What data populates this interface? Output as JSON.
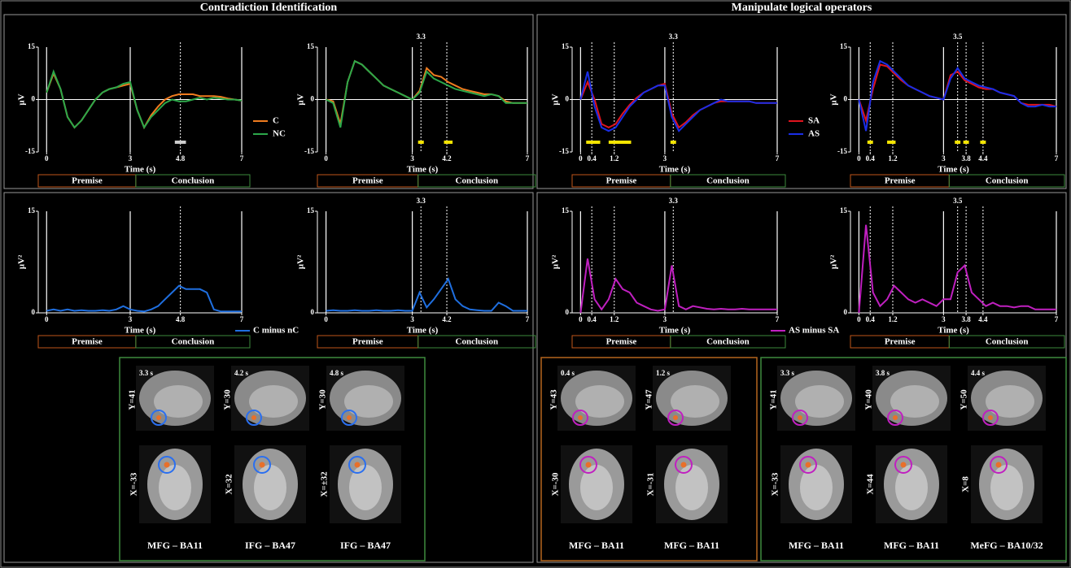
{
  "sections": [
    "Contradiction Identification",
    "Manipulate logical operators"
  ],
  "chart_data": [
    {
      "type": "line",
      "ylabel": "µV",
      "xlabel": "Time (s)",
      "xlim": [
        -0.3,
        7
      ],
      "ylim": [
        -15,
        15
      ],
      "yticks": [
        -15,
        0,
        15
      ],
      "xticks": [
        0,
        3,
        4.8,
        7
      ],
      "x": [
        0,
        0.25,
        0.5,
        0.75,
        1,
        1.25,
        1.5,
        1.75,
        2,
        2.25,
        2.5,
        2.75,
        3,
        3.25,
        3.5,
        3.75,
        4,
        4.25,
        4.5,
        4.75,
        5,
        5.25,
        5.5,
        5.75,
        6,
        6.25,
        6.5,
        6.75,
        7
      ],
      "series": [
        {
          "name": "C",
          "color": "#f07c1f",
          "values": [
            2,
            7.5,
            3,
            -5,
            -8,
            -6,
            -3,
            0,
            2,
            3,
            3.5,
            4,
            4.5,
            -3,
            -8,
            -4.5,
            -2,
            0,
            1,
            1.5,
            1.5,
            1.5,
            1,
            1,
            1,
            0.8,
            0.3,
            0,
            -0.3
          ]
        },
        {
          "name": "NC",
          "color": "#2ca84a",
          "values": [
            2,
            8,
            3,
            -5,
            -8,
            -6,
            -3,
            0,
            2,
            3,
            3.5,
            4.5,
            5,
            -3,
            -8,
            -5,
            -3,
            -1,
            0,
            -0.5,
            -0.5,
            0,
            0.5,
            0,
            0.5,
            0.3,
            0,
            0,
            -0.3
          ]
        }
      ],
      "legend": "right",
      "event_lines": [
        0,
        3,
        7
      ],
      "dashed_lines": [
        4.8
      ],
      "top_labels": [],
      "interval_color": "#cccccc",
      "significant_intervals": [
        {
          "start": 4.6,
          "end": 5.0
        }
      ],
      "phases": [
        "Premise",
        "Conclusion"
      ]
    },
    {
      "type": "line",
      "ylabel": "µV",
      "xlabel": "Time (s)",
      "xlim": [
        -0.3,
        7
      ],
      "ylim": [
        -15,
        15
      ],
      "yticks": [
        -15,
        0,
        15
      ],
      "xticks": [
        0,
        3,
        4.2,
        7
      ],
      "x": [
        0,
        0.25,
        0.5,
        0.75,
        1,
        1.25,
        1.5,
        1.75,
        2,
        2.25,
        2.5,
        2.75,
        3,
        3.25,
        3.5,
        3.75,
        4,
        4.25,
        4.5,
        4.75,
        5,
        5.25,
        5.5,
        5.75,
        6,
        6.25,
        6.5,
        6.75,
        7
      ],
      "series": [
        {
          "color": "#f07c1f",
          "values": [
            0,
            -0.5,
            -7,
            5,
            11,
            10,
            8,
            6,
            4,
            3,
            2,
            1,
            0,
            2.5,
            9,
            7,
            6.5,
            5,
            4,
            3,
            2.5,
            2,
            1.5,
            1.5,
            1,
            -0.5,
            -1,
            -1,
            -1
          ]
        },
        {
          "color": "#2ca84a",
          "values": [
            0,
            -1,
            -8,
            5,
            11,
            10,
            8,
            6,
            4,
            3,
            2,
            1,
            0,
            2,
            8,
            6,
            5,
            4,
            3,
            2.5,
            2,
            1.5,
            1,
            1.5,
            1,
            -1,
            -1,
            -1,
            -1
          ]
        }
      ],
      "event_lines": [
        0,
        3,
        7
      ],
      "dashed_lines": [
        3.3,
        4.2
      ],
      "top_labels": [
        3.3
      ],
      "interval_color": "#f5e400",
      "significant_intervals": [
        {
          "start": 3.2,
          "end": 3.4
        },
        {
          "start": 4.1,
          "end": 4.4
        }
      ],
      "phases": [
        "Premise",
        "Conclusion"
      ]
    },
    {
      "type": "line",
      "ylabel": "µV",
      "xlabel": "Time (s)",
      "xlim": [
        -0.3,
        7
      ],
      "ylim": [
        -15,
        15
      ],
      "yticks": [
        -15,
        0,
        15
      ],
      "xticks": [
        0,
        0.4,
        1.2,
        3,
        7
      ],
      "x": [
        0,
        0.25,
        0.5,
        0.75,
        1,
        1.25,
        1.5,
        1.75,
        2,
        2.25,
        2.5,
        2.75,
        3,
        3.25,
        3.5,
        3.75,
        4,
        4.25,
        4.5,
        4.75,
        5,
        5.25,
        5.5,
        5.75,
        6,
        6.25,
        6.5,
        6.75,
        7
      ],
      "series": [
        {
          "name": "SA",
          "color": "#e0141e",
          "values": [
            0,
            5,
            0,
            -7,
            -8,
            -7,
            -4,
            -1.5,
            0.5,
            2,
            3,
            4,
            4.5,
            -4,
            -8,
            -6.5,
            -4.5,
            -3,
            -2,
            -1,
            -0.5,
            -0.5,
            -0.5,
            -0.5,
            -0.5,
            -1,
            -1,
            -1,
            -1
          ]
        },
        {
          "name": "AS",
          "color": "#1a2ee8",
          "values": [
            0,
            8,
            -2,
            -8,
            -9,
            -8,
            -5,
            -2,
            0,
            2,
            3,
            4,
            4,
            -5,
            -9,
            -7,
            -5,
            -3,
            -2,
            -1,
            0,
            -0.5,
            -0.5,
            -0.5,
            -0.5,
            -1,
            -1,
            -1,
            -1
          ]
        }
      ],
      "legend": "right",
      "event_lines": [
        0,
        3,
        7
      ],
      "dashed_lines": [
        0.4,
        1.2,
        3.3
      ],
      "top_labels": [
        3.3
      ],
      "interval_color": "#f5e400",
      "significant_intervals": [
        {
          "start": 0.2,
          "end": 0.7
        },
        {
          "start": 1.0,
          "end": 1.8
        },
        {
          "start": 3.2,
          "end": 3.4
        }
      ],
      "phases": [
        "Premise",
        "Conclusion"
      ]
    },
    {
      "type": "line",
      "ylabel": "µV",
      "xlabel": "Time (s)",
      "xlim": [
        -0.3,
        7
      ],
      "ylim": [
        -15,
        15
      ],
      "yticks": [
        -15,
        0,
        15
      ],
      "xticks": [
        0,
        0.4,
        1.2,
        3,
        3.8,
        4.4,
        7
      ],
      "x": [
        0,
        0.25,
        0.5,
        0.75,
        1,
        1.25,
        1.5,
        1.75,
        2,
        2.25,
        2.5,
        2.75,
        3,
        3.25,
        3.5,
        3.75,
        4,
        4.25,
        4.5,
        4.75,
        5,
        5.25,
        5.5,
        5.75,
        6,
        6.25,
        6.5,
        6.75,
        7
      ],
      "series": [
        {
          "color": "#e0141e",
          "values": [
            0,
            -6,
            3,
            10,
            9.5,
            7.5,
            5.5,
            4,
            3,
            2,
            1,
            0.5,
            0,
            7,
            8,
            5.5,
            4.5,
            3.5,
            3,
            3,
            2,
            1.5,
            1,
            -1,
            -1.5,
            -1.5,
            -1.5,
            -1.5,
            -2
          ]
        },
        {
          "color": "#1a2ee8",
          "values": [
            0,
            -9,
            5,
            11,
            10,
            8,
            6,
            4,
            3,
            2,
            1,
            0.5,
            0,
            6,
            9,
            6,
            5,
            4,
            3.5,
            3,
            2,
            1.5,
            1,
            -1,
            -2,
            -2,
            -1.5,
            -2,
            -2
          ]
        }
      ],
      "event_lines": [
        0,
        3,
        7
      ],
      "dashed_lines": [
        0.4,
        1.2,
        3.5,
        3.8,
        4.4
      ],
      "top_labels": [
        3.5
      ],
      "interval_color": "#f5e400",
      "significant_intervals": [
        {
          "start": 0.3,
          "end": 0.5
        },
        {
          "start": 1.0,
          "end": 1.3
        },
        {
          "start": 3.4,
          "end": 3.6
        },
        {
          "start": 3.7,
          "end": 3.9
        },
        {
          "start": 4.3,
          "end": 4.5
        }
      ],
      "phases": [
        "Premise",
        "Conclusion"
      ]
    },
    {
      "type": "line",
      "ylabel": "µV²",
      "xlabel": "Time (s)",
      "xlim": [
        -0.3,
        7
      ],
      "ylim": [
        0,
        15
      ],
      "yticks": [
        0,
        15
      ],
      "xticks": [
        0,
        3,
        4.8,
        7
      ],
      "x": [
        0,
        0.25,
        0.5,
        0.75,
        1,
        1.25,
        1.5,
        1.75,
        2,
        2.25,
        2.5,
        2.75,
        3,
        3.25,
        3.5,
        3.75,
        4,
        4.25,
        4.5,
        4.75,
        5,
        5.25,
        5.5,
        5.75,
        6,
        6.25,
        6.5,
        6.75,
        7
      ],
      "series": [
        {
          "name": "C minus nC",
          "color": "#1f6fe0",
          "values": [
            0.3,
            0.5,
            0.3,
            0.5,
            0.3,
            0.4,
            0.3,
            0.3,
            0.4,
            0.3,
            0.5,
            1,
            0.5,
            0.3,
            0.2,
            0.5,
            1,
            2,
            3,
            4,
            3.5,
            3.5,
            3.5,
            3,
            0.5,
            0.2,
            0.2,
            0.2,
            0.2
          ]
        }
      ],
      "legend": "below",
      "event_lines": [
        0,
        3,
        7
      ],
      "dashed_lines": [
        4.8
      ],
      "top_labels": [],
      "significant_intervals": [],
      "phases": [
        "Premise",
        "Conclusion"
      ]
    },
    {
      "type": "line",
      "ylabel": "µV²",
      "xlabel": "Time (s)",
      "xlim": [
        -0.3,
        7
      ],
      "ylim": [
        0,
        15
      ],
      "yticks": [
        0,
        15
      ],
      "xticks": [
        0,
        3,
        4.2,
        7
      ],
      "x": [
        0,
        0.25,
        0.5,
        0.75,
        1,
        1.25,
        1.5,
        1.75,
        2,
        2.25,
        2.5,
        2.75,
        3,
        3.25,
        3.5,
        3.75,
        4,
        4.25,
        4.5,
        4.75,
        5,
        5.25,
        5.5,
        5.75,
        6,
        6.25,
        6.5,
        6.75,
        7
      ],
      "series": [
        {
          "color": "#1f6fe0",
          "values": [
            0.3,
            0.4,
            0.3,
            0.3,
            0.4,
            0.3,
            0.3,
            0.4,
            0.3,
            0.3,
            0.4,
            0.3,
            0.3,
            3,
            0.8,
            2,
            3.5,
            5,
            2,
            1,
            0.5,
            0.4,
            0.3,
            0.3,
            1.5,
            1,
            0.3,
            0.3,
            0.3
          ]
        }
      ],
      "event_lines": [
        0,
        3,
        7
      ],
      "dashed_lines": [
        3.3,
        4.2
      ],
      "top_labels": [
        3.3
      ],
      "significant_intervals": [],
      "phases": [
        "Premise",
        "Conclusion"
      ]
    },
    {
      "type": "line",
      "ylabel": "µV²",
      "xlabel": "Time (s)",
      "xlim": [
        -0.3,
        7
      ],
      "ylim": [
        0,
        15
      ],
      "yticks": [
        0,
        15
      ],
      "xticks": [
        0,
        0.4,
        1.2,
        3,
        7
      ],
      "x": [
        0,
        0.25,
        0.5,
        0.75,
        1,
        1.25,
        1.5,
        1.75,
        2,
        2.25,
        2.5,
        2.75,
        3,
        3.25,
        3.5,
        3.75,
        4,
        4.25,
        4.5,
        4.75,
        5,
        5.25,
        5.5,
        5.75,
        6,
        6.25,
        6.5,
        6.75,
        7
      ],
      "series": [
        {
          "name": "AS minus SA",
          "color": "#c020c0",
          "values": [
            0,
            8,
            2,
            0.5,
            2,
            5,
            3.5,
            3,
            1.5,
            1,
            0.5,
            0.3,
            0.5,
            7,
            1,
            0.5,
            1,
            0.8,
            0.6,
            0.5,
            0.6,
            0.5,
            0.5,
            0.6,
            0.5,
            0.5,
            0.5,
            0.5,
            0.5
          ]
        }
      ],
      "legend": "below",
      "event_lines": [
        0,
        3,
        7
      ],
      "dashed_lines": [
        0.4,
        1.2,
        3.3
      ],
      "top_labels": [
        3.3
      ],
      "significant_intervals": [],
      "phases": [
        "Premise",
        "Conclusion"
      ]
    },
    {
      "type": "line",
      "ylabel": "µV²",
      "xlabel": "Time (s)",
      "xlim": [
        -0.3,
        7
      ],
      "ylim": [
        0,
        15
      ],
      "yticks": [
        0,
        15
      ],
      "xticks": [
        0,
        0.4,
        1.2,
        3,
        3.8,
        4.4,
        7
      ],
      "x": [
        0,
        0.25,
        0.5,
        0.75,
        1,
        1.25,
        1.5,
        1.75,
        2,
        2.25,
        2.5,
        2.75,
        3,
        3.25,
        3.5,
        3.75,
        4,
        4.25,
        4.5,
        4.75,
        5,
        5.25,
        5.5,
        5.75,
        6,
        6.25,
        6.5,
        6.75,
        7
      ],
      "series": [
        {
          "color": "#c020c0",
          "values": [
            0,
            13,
            3,
            1,
            2,
            4,
            3,
            2,
            1.5,
            2,
            1.5,
            1,
            2,
            2,
            6,
            7,
            3,
            2,
            1,
            1.5,
            1,
            1,
            0.8,
            1,
            1,
            0.5,
            0.5,
            0.5,
            0.5
          ]
        }
      ],
      "event_lines": [
        0,
        3,
        7
      ],
      "dashed_lines": [
        0.4,
        1.2,
        3.5,
        3.8,
        4.4
      ],
      "top_labels": [
        3.5
      ],
      "significant_intervals": [],
      "phases": [
        "Premise",
        "Conclusion"
      ]
    }
  ],
  "brain_groups": [
    {
      "border": "#3d8a3d",
      "circle": "#2a6ff0",
      "panels": [
        {
          "time": "3.3 s",
          "sagittal": "Y=41",
          "axial": "X=-33",
          "region": "MFG – BA11"
        },
        {
          "time": "4.2 s",
          "sagittal": "Y=30",
          "axial": "X=32",
          "region": "IFG – BA47"
        },
        {
          "time": "4.8 s",
          "sagittal": "Y=30",
          "axial": "X=±32",
          "region": "IFG – BA47"
        }
      ]
    },
    {
      "border": "#b5651d",
      "circle": "#c020c0",
      "panels": [
        {
          "time": "0.4 s",
          "sagittal": "Y=43",
          "axial": "X=-30",
          "region": "MFG – BA11"
        },
        {
          "time": "1.2 s",
          "sagittal": "Y=47",
          "axial": "X=-31",
          "region": "MFG – BA11"
        }
      ]
    },
    {
      "border": "#3d8a3d",
      "circle": "#c020c0",
      "panels": [
        {
          "time": "3.3 s",
          "sagittal": "Y=41",
          "axial": "X=-33",
          "region": "MFG – BA11"
        },
        {
          "time": "3.8 s",
          "sagittal": "Y=40",
          "axial": "X=44",
          "region": "MFG – BA11"
        },
        {
          "time": "4.4 s",
          "sagittal": "Y=50",
          "axial": "X=8",
          "region": "MeFG – BA10/32"
        }
      ]
    }
  ]
}
